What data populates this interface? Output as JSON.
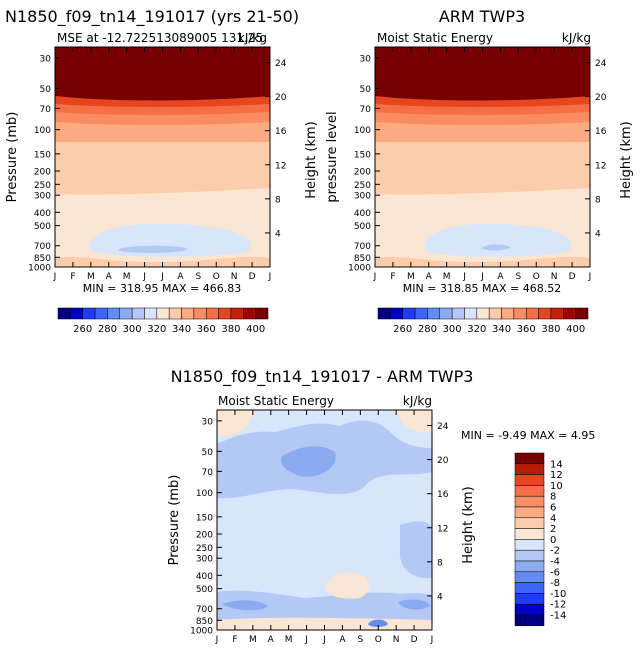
{
  "chart_data": [
    {
      "type": "heatmap",
      "id": "model",
      "title": "N1850_f09_tn14_191017 (yrs 21-50)",
      "subtitle_left": "MSE at -12.722513089005 131.25",
      "subtitle_right": "kJ/kg",
      "ylabel": "Pressure (mb)",
      "ylabel_right": "Height (km)",
      "stats": "MIN = 318.95 MAX = 466.83",
      "months": [
        "J",
        "F",
        "M",
        "A",
        "M",
        "J",
        "J",
        "A",
        "S",
        "O",
        "N",
        "D",
        "J"
      ],
      "pressure_ticks": [
        "30",
        "50",
        "70",
        "100",
        "150",
        "200",
        "250",
        "300",
        "400",
        "500",
        "700",
        "850",
        "1000"
      ],
      "pressure_tick_values": [
        30,
        50,
        70,
        100,
        150,
        200,
        250,
        300,
        400,
        500,
        700,
        850,
        1000
      ],
      "height_ticks": [
        "24",
        "20",
        "16",
        "12",
        "8",
        "4"
      ],
      "height_tick_values": [
        24,
        20,
        16,
        12,
        8,
        4
      ]
    },
    {
      "type": "heatmap",
      "id": "obs",
      "title": "ARM TWP3",
      "subtitle_left": "Moist Static Energy",
      "subtitle_right": "kJ/kg",
      "ylabel": "pressure level",
      "ylabel_right": "Height (km)",
      "stats": "MIN = 318.85 MAX = 468.52",
      "months": [
        "J",
        "F",
        "M",
        "A",
        "M",
        "J",
        "J",
        "A",
        "S",
        "O",
        "N",
        "D",
        "J"
      ],
      "pressure_ticks": [
        "30",
        "50",
        "70",
        "100",
        "150",
        "200",
        "250",
        "300",
        "400",
        "500",
        "700",
        "850",
        "1000"
      ],
      "pressure_tick_values": [
        30,
        50,
        70,
        100,
        150,
        200,
        250,
        300,
        400,
        500,
        700,
        850,
        1000
      ],
      "height_ticks": [
        "24",
        "20",
        "16",
        "12",
        "8",
        "4"
      ],
      "height_tick_values": [
        24,
        20,
        16,
        12,
        8,
        4
      ]
    },
    {
      "type": "heatmap",
      "id": "diff",
      "title": "N1850_f09_tn14_191017 - ARM TWP3",
      "subtitle_left": "Moist Static Energy",
      "subtitle_right": "kJ/kg",
      "ylabel": "Pressure (mb)",
      "ylabel_right": "Height (km)",
      "stats": "MIN = -9.49 MAX = 4.95",
      "months": [
        "J",
        "F",
        "M",
        "A",
        "M",
        "J",
        "J",
        "A",
        "S",
        "O",
        "N",
        "D",
        "J"
      ],
      "pressure_ticks": [
        "30",
        "50",
        "70",
        "100",
        "150",
        "200",
        "250",
        "300",
        "400",
        "500",
        "700",
        "850",
        "1000"
      ],
      "pressure_tick_values": [
        30,
        50,
        70,
        100,
        150,
        200,
        250,
        300,
        400,
        500,
        700,
        850,
        1000
      ],
      "height_ticks": [
        "24",
        "20",
        "16",
        "12",
        "8",
        "4"
      ],
      "height_tick_values": [
        24,
        20,
        16,
        12,
        8,
        4
      ]
    }
  ],
  "colorbar_abs": {
    "labels": [
      "260",
      "280",
      "300",
      "320",
      "340",
      "360",
      "380",
      "400"
    ],
    "colors": [
      "#000080",
      "#0000c8",
      "#1e3cff",
      "#3c64ff",
      "#648cf0",
      "#8caaf0",
      "#b4c8f5",
      "#d7e6fa",
      "#fae6d2",
      "#fccdaa",
      "#fcaa82",
      "#fa8c64",
      "#f56e46",
      "#e6461e",
      "#c81e0a",
      "#a00000",
      "#780000"
    ]
  },
  "colorbar_diff": {
    "labels": [
      "14",
      "12",
      "10",
      "8",
      "6",
      "4",
      "2",
      "0",
      "-2",
      "-4",
      "-6",
      "-8",
      "-10",
      "-12",
      "-14"
    ],
    "colors": [
      "#780000",
      "#b41e0a",
      "#e6461e",
      "#f56e46",
      "#fa8c64",
      "#fcaa82",
      "#fccdaa",
      "#fae6d2",
      "#d7e6fa",
      "#b4c8f5",
      "#8caaf0",
      "#648cf0",
      "#3c64ff",
      "#1e3cff",
      "#0000c8",
      "#000080"
    ]
  }
}
